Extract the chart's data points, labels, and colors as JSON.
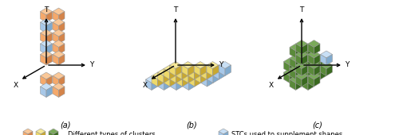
{
  "figure_width": 5.0,
  "figure_height": 1.7,
  "dpi": 100,
  "bg_color": "#ffffff",
  "panel_labels": [
    "(a)",
    "(b)",
    "(c)"
  ],
  "orange_face": "#F5A96B",
  "orange_top": "#FAC898",
  "orange_right": "#D4844A",
  "yellow_face": "#EDD96A",
  "yellow_top": "#F5E898",
  "yellow_right": "#C8A830",
  "green_face": "#5A8A3A",
  "green_top": "#7AAA5A",
  "green_right": "#3A6A20",
  "blue_face": "#A8C8E8",
  "blue_top": "#C8DFF5",
  "blue_right": "#80AACE",
  "legend_text1": "Different types of clusters",
  "legend_text2": "STCs used to supplement shapes",
  "font_size": 6.0,
  "label_font_size": 7.0
}
